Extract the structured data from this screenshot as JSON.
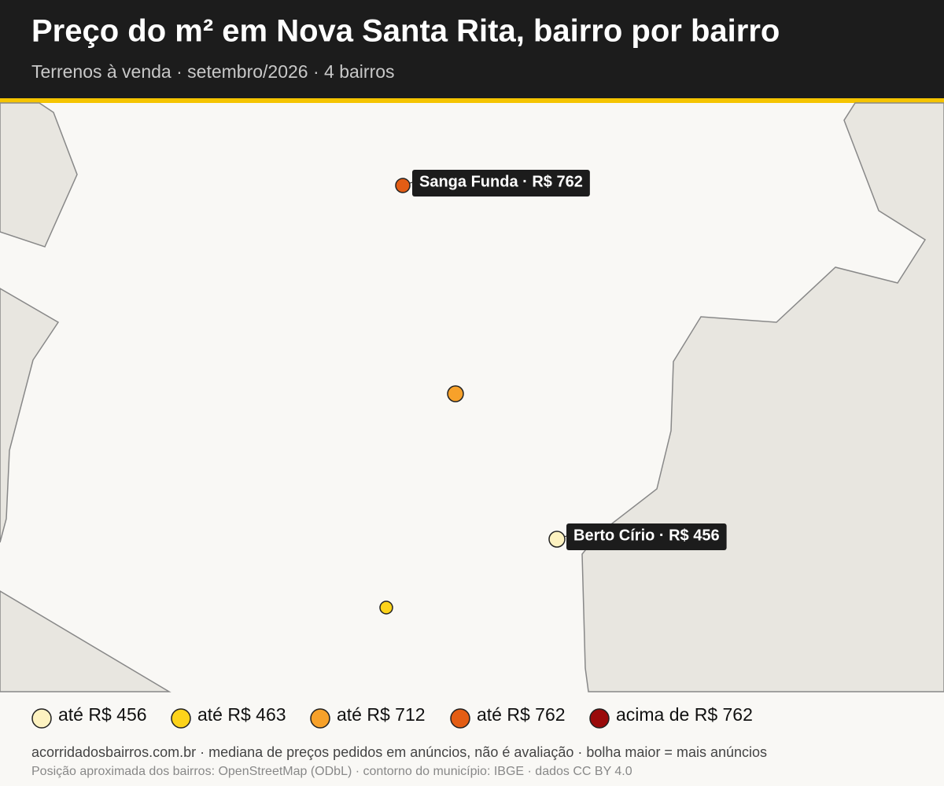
{
  "header": {
    "title": "Preço do m² em Nova Santa Rita, bairro por bairro",
    "subtitle": "Terrenos à venda · setembro/2026 · 4 bairros"
  },
  "map": {
    "points": [
      {
        "label": "Sanga Funda · R$ 762",
        "color": "#e35d14"
      },
      {
        "color": "#f7a12a"
      },
      {
        "label": "Berto Círio · R$ 456",
        "color": "#fdf2c0"
      },
      {
        "color": "#fdd31a"
      }
    ]
  },
  "legend": {
    "items": [
      {
        "label": "até R$ 456",
        "color": "#fdf2c0"
      },
      {
        "label": "até R$ 463",
        "color": "#fdd31a"
      },
      {
        "label": "até R$ 712",
        "color": "#f7a12a"
      },
      {
        "label": "até R$ 762",
        "color": "#e35d14"
      },
      {
        "label": "acima de R$ 762",
        "color": "#9a0a0a"
      }
    ]
  },
  "footer": {
    "source": "acorridadosbairros.com.br · mediana de preços pedidos em anúncios, não é avaliação · bolha maior = mais anúncios",
    "credits": "Posição aproximada dos bairros: OpenStreetMap (ODbL) · contorno do município: IBGE · dados CC BY 4.0"
  }
}
